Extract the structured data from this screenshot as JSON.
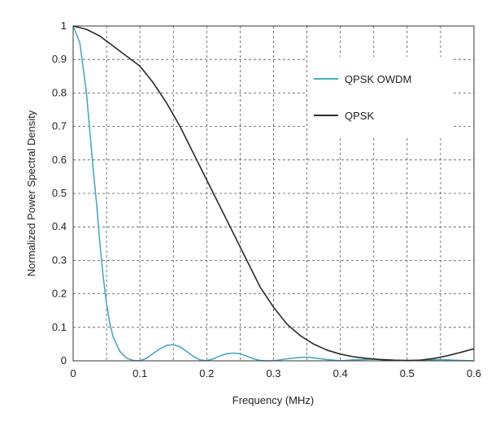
{
  "chart_data": {
    "type": "line",
    "title": "",
    "xlabel": "Frequency (MHz)",
    "ylabel": "Normalized Power Spectral Density",
    "xlim": [
      0,
      0.6
    ],
    "ylim": [
      0,
      1
    ],
    "xticks": [
      "0",
      "0.1",
      "0.2",
      "0.3",
      "0.4",
      "0.5",
      "0.6"
    ],
    "yticks": [
      "0",
      "0.1",
      "0.2",
      "0.3",
      "0.4",
      "0.5",
      "0.6",
      "0.7",
      "0.8",
      "0.9",
      "1"
    ],
    "grid": true,
    "legend_position": "top-right",
    "series": [
      {
        "name": "QPSK OWDM",
        "color": "#4aa8c4",
        "x": [
          0,
          0.01,
          0.02,
          0.03,
          0.035,
          0.04,
          0.045,
          0.05,
          0.055,
          0.06,
          0.07,
          0.08,
          0.09,
          0.1,
          0.11,
          0.12,
          0.13,
          0.14,
          0.15,
          0.16,
          0.17,
          0.18,
          0.19,
          0.2,
          0.21,
          0.22,
          0.23,
          0.24,
          0.25,
          0.26,
          0.27,
          0.28,
          0.29,
          0.3,
          0.32,
          0.34,
          0.35,
          0.36,
          0.38,
          0.4,
          0.42,
          0.45,
          0.48,
          0.5,
          0.52,
          0.55,
          0.58,
          0.6
        ],
        "y": [
          1.0,
          0.95,
          0.8,
          0.57,
          0.47,
          0.35,
          0.25,
          0.17,
          0.11,
          0.07,
          0.028,
          0.008,
          0.001,
          0.0,
          0.008,
          0.022,
          0.036,
          0.046,
          0.048,
          0.042,
          0.028,
          0.013,
          0.003,
          0.0,
          0.006,
          0.015,
          0.021,
          0.023,
          0.021,
          0.014,
          0.006,
          0.001,
          0.0,
          0.0,
          0.006,
          0.01,
          0.011,
          0.009,
          0.004,
          0.0,
          0.003,
          0.005,
          0.002,
          0.0,
          0.002,
          0.004,
          0.001,
          0.0
        ]
      },
      {
        "name": "QPSK",
        "color": "#2b2b2b",
        "x": [
          0,
          0.02,
          0.04,
          0.06,
          0.08,
          0.1,
          0.12,
          0.14,
          0.16,
          0.18,
          0.2,
          0.22,
          0.24,
          0.26,
          0.28,
          0.3,
          0.32,
          0.34,
          0.36,
          0.38,
          0.4,
          0.42,
          0.44,
          0.46,
          0.48,
          0.5,
          0.52,
          0.54,
          0.56,
          0.58,
          0.6
        ],
        "y": [
          1.0,
          0.99,
          0.97,
          0.94,
          0.91,
          0.88,
          0.83,
          0.77,
          0.7,
          0.62,
          0.54,
          0.46,
          0.38,
          0.3,
          0.22,
          0.16,
          0.11,
          0.075,
          0.05,
          0.032,
          0.02,
          0.012,
          0.007,
          0.004,
          0.002,
          0.001,
          0.002,
          0.007,
          0.015,
          0.025,
          0.036
        ]
      }
    ]
  }
}
